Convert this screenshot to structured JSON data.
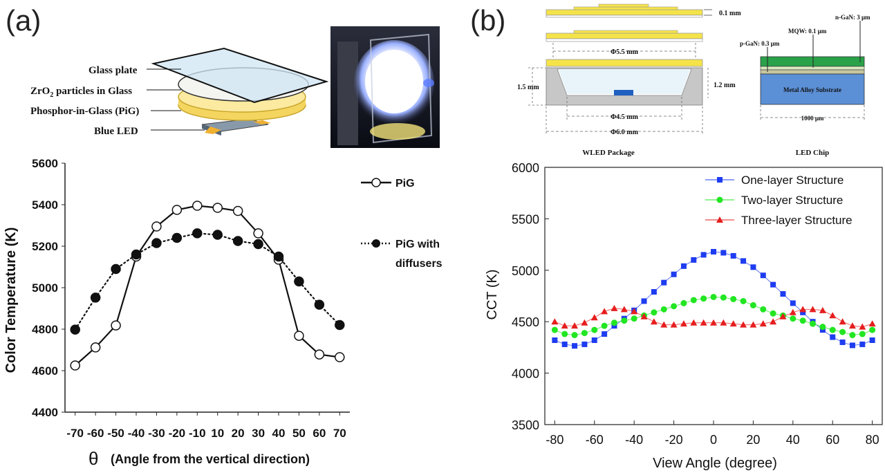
{
  "panel_a": {
    "label": "(a)",
    "schematic": {
      "glass_plate": "Glass plate",
      "zro2_main": "ZrO",
      "zro2_sub": "2",
      "zro2_rest": " particles in Glass",
      "pig": "Phosphor-in-Glass (PiG)",
      "blue_led": "Blue LED"
    }
  },
  "panel_b": {
    "label": "(b)",
    "package": {
      "dim_01": "0.1 mm",
      "dim_55": "Φ5.5 mm",
      "dim_15": "1.5 mm",
      "dim_12": "1.2 mm",
      "dim_45": "Φ4.5 mm",
      "dim_60": "Φ6.0 mm",
      "caption": "WLED Package"
    },
    "chip": {
      "ngan": "n-GaN: 3 μm",
      "mqw": "MQW: 0.1 μm",
      "pgan": "p-GaN: 0.3 μm",
      "substrate": "Metal Alloy Substrate",
      "width": "1000 μm",
      "caption": "LED Chip"
    }
  },
  "colors": {
    "yellow": "#f5e34a",
    "led_blue": "#1f5fbf",
    "substrate": "#5b8fd6",
    "ngan": "#2aa24a",
    "one": "#1e3cf0",
    "two": "#22e622",
    "three": "#e61e1e"
  },
  "chart_data": [
    {
      "type": "line",
      "xlabel_symbol": "θ",
      "xlabel": "(Angle from the vertical direction)",
      "ylabel": "Color Temperature (K)",
      "ylim": [
        4400,
        5600
      ],
      "yticks": [
        4400,
        4600,
        4800,
        5000,
        5200,
        5400,
        5600
      ],
      "x": [
        -70,
        -60,
        -50,
        -40,
        -30,
        -20,
        -10,
        10,
        20,
        30,
        40,
        50,
        60,
        70
      ],
      "x_tick_labels": [
        "-70",
        "-60",
        "-50",
        "-40",
        "-30",
        "-20",
        "-10",
        "10",
        "20",
        "30",
        "40",
        "50",
        "60",
        "70"
      ],
      "series": [
        {
          "name": "PiG",
          "style": "solid-open-circle",
          "values": [
            4625,
            4712,
            4818,
            5150,
            5295,
            5375,
            5395,
            5385,
            5370,
            5262,
            5135,
            4768,
            4678,
            4665
          ]
        },
        {
          "name": "PiG with diffusers",
          "name_line1": "PiG with",
          "name_line2": "diffusers",
          "style": "dotted-filled-circle",
          "values": [
            4798,
            4952,
            5090,
            5160,
            5215,
            5240,
            5262,
            5255,
            5225,
            5210,
            5150,
            5030,
            4918,
            4820
          ]
        }
      ]
    },
    {
      "type": "line",
      "xlabel": "View Angle (degree)",
      "ylabel": "CCT (K)",
      "xlim": [
        -85,
        85
      ],
      "ylim": [
        3500,
        6000
      ],
      "xticks": [
        -80,
        -60,
        -40,
        -20,
        0,
        20,
        40,
        60,
        80
      ],
      "yticks": [
        3500,
        4000,
        4500,
        5000,
        5500,
        6000
      ],
      "x": [
        -80,
        -75,
        -70,
        -65,
        -60,
        -55,
        -50,
        -45,
        -40,
        -35,
        -30,
        -25,
        -20,
        -15,
        -10,
        -5,
        0,
        5,
        10,
        15,
        20,
        25,
        30,
        35,
        40,
        45,
        50,
        55,
        60,
        65,
        70,
        75,
        80
      ],
      "series": [
        {
          "name": "One-layer Structure",
          "marker": "square",
          "color": "#1e3cf0",
          "values": [
            4320,
            4280,
            4265,
            4280,
            4320,
            4380,
            4460,
            4530,
            4610,
            4700,
            4790,
            4880,
            4960,
            5040,
            5100,
            5150,
            5180,
            5170,
            5140,
            5090,
            5030,
            4950,
            4860,
            4770,
            4680,
            4590,
            4500,
            4420,
            4350,
            4300,
            4270,
            4280,
            4320
          ]
        },
        {
          "name": "Two-layer Structure",
          "marker": "circle",
          "color": "#22e622",
          "values": [
            4420,
            4380,
            4370,
            4390,
            4420,
            4460,
            4490,
            4510,
            4530,
            4560,
            4590,
            4620,
            4650,
            4680,
            4710,
            4725,
            4740,
            4735,
            4720,
            4700,
            4660,
            4620,
            4580,
            4560,
            4530,
            4510,
            4480,
            4450,
            4420,
            4400,
            4370,
            4380,
            4420
          ]
        },
        {
          "name": "Three-layer Structure",
          "marker": "triangle",
          "color": "#e61e1e",
          "values": [
            4500,
            4460,
            4460,
            4490,
            4540,
            4600,
            4630,
            4620,
            4600,
            4550,
            4500,
            4470,
            4470,
            4480,
            4490,
            4490,
            4490,
            4490,
            4480,
            4470,
            4470,
            4480,
            4500,
            4550,
            4590,
            4620,
            4620,
            4610,
            4560,
            4500,
            4460,
            4450,
            4480
          ]
        }
      ]
    }
  ]
}
